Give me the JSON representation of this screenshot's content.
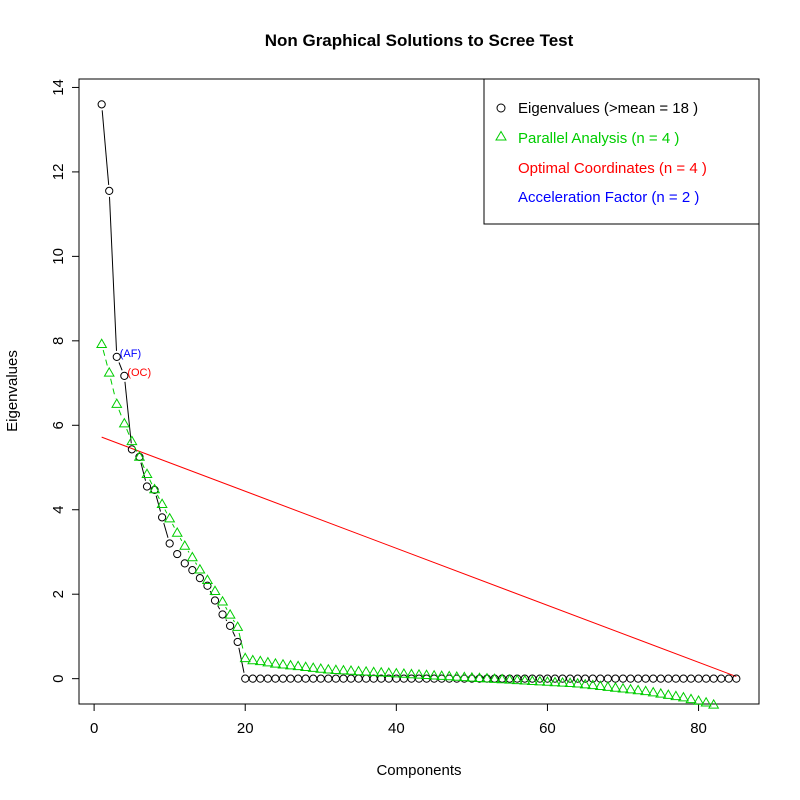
{
  "chart_data": {
    "type": "scatter",
    "title": "Non Graphical Solutions to Scree Test",
    "xlabel": "Components",
    "ylabel": "Eigenvalues",
    "xlim": [
      -2,
      88
    ],
    "ylim": [
      -0.6,
      14.2
    ],
    "x_ticks": [
      0,
      20,
      40,
      60,
      80
    ],
    "y_ticks": [
      0,
      2,
      4,
      6,
      8,
      10,
      12,
      14
    ],
    "legend_position": "top-right",
    "grid": false,
    "legend": {
      "eigen": "Eigenvalues (>mean  =  18 )",
      "parallel": "Parallel Analysis (n =  4 )",
      "oc": "Optimal Coordinates (n =  4 )",
      "af": "Acceleration Factor (n =  2 )"
    },
    "colors": {
      "eigen": "#000000",
      "parallel": "#00cd00",
      "oc": "#ff0000",
      "af": "#0000ff"
    },
    "annotations": [
      {
        "text": "(AF)",
        "x": 3,
        "y": 7.62,
        "color": "#0000ff"
      },
      {
        "text": "(OC)",
        "x": 4,
        "y": 7.17,
        "color": "#ff0000"
      }
    ],
    "series": [
      {
        "name": "Eigenvalues",
        "marker": "circle",
        "x": [
          1,
          2,
          3,
          4,
          5,
          6,
          7,
          8,
          9,
          10,
          11,
          12,
          13,
          14,
          15,
          16,
          17,
          18,
          19,
          20,
          21,
          22,
          23,
          24,
          25,
          26,
          27,
          28,
          29,
          30,
          31,
          32,
          33,
          34,
          35,
          36,
          37,
          38,
          39,
          40,
          41,
          42,
          43,
          44,
          45,
          46,
          47,
          48,
          49,
          50,
          51,
          52,
          53,
          54,
          55,
          56,
          57,
          58,
          59,
          60,
          61,
          62,
          63,
          64,
          65,
          66,
          67,
          68,
          69,
          70,
          71,
          72,
          73,
          74,
          75,
          76,
          77,
          78,
          79,
          80,
          81,
          82,
          83,
          84,
          85
        ],
        "values": [
          13.6,
          11.55,
          7.62,
          7.17,
          5.43,
          5.25,
          4.55,
          4.47,
          3.82,
          3.2,
          2.95,
          2.73,
          2.57,
          2.38,
          2.2,
          1.85,
          1.52,
          1.25,
          0.87,
          0,
          0,
          0,
          0,
          0,
          0,
          0,
          0,
          0,
          0,
          0,
          0,
          0,
          0,
          0,
          0,
          0,
          0,
          0,
          0,
          0,
          0,
          0,
          0,
          0,
          0,
          0,
          0,
          0,
          0,
          0,
          0,
          0,
          0,
          0,
          0,
          0,
          0,
          0,
          0,
          0,
          0,
          0,
          0,
          0,
          0,
          0,
          0,
          0,
          0,
          0,
          0,
          0,
          0,
          0,
          0,
          0,
          0,
          0,
          0,
          0,
          0,
          0,
          0,
          0,
          0
        ]
      },
      {
        "name": "Parallel Analysis",
        "marker": "triangle",
        "x": [
          1,
          2,
          3,
          4,
          5,
          6,
          7,
          8,
          9,
          10,
          11,
          12,
          13,
          14,
          15,
          16,
          17,
          18,
          19,
          20,
          21,
          22,
          23,
          24,
          25,
          26,
          27,
          28,
          29,
          30,
          31,
          32,
          33,
          34,
          35,
          36,
          37,
          38,
          39,
          40,
          41,
          42,
          43,
          44,
          45,
          46,
          47,
          48,
          49,
          50,
          51,
          52,
          53,
          54,
          55,
          56,
          57,
          58,
          59,
          60,
          61,
          62,
          63,
          64,
          65,
          66,
          67,
          68,
          69,
          70,
          71,
          72,
          73,
          74,
          75,
          76,
          77,
          78,
          79,
          80,
          81,
          82,
          83,
          84,
          85
        ],
        "values": [
          7.92,
          7.24,
          6.5,
          6.04,
          5.62,
          5.25,
          4.84,
          4.48,
          4.13,
          3.79,
          3.45,
          3.14,
          2.87,
          2.58,
          2.33,
          2.07,
          1.82,
          1.51,
          1.22,
          0.48,
          0.43,
          0.41,
          0.38,
          0.35,
          0.33,
          0.31,
          0.29,
          0.27,
          0.25,
          0.23,
          0.21,
          0.2,
          0.19,
          0.18,
          0.17,
          0.16,
          0.15,
          0.14,
          0.13,
          0.12,
          0.11,
          0.1,
          0.09,
          0.08,
          0.07,
          0.06,
          0.05,
          0.04,
          0.03,
          0.02,
          0.01,
          0.0,
          -0.01,
          -0.02,
          -0.03,
          -0.04,
          -0.05,
          -0.06,
          -0.07,
          -0.08,
          -0.09,
          -0.1,
          -0.11,
          -0.12,
          -0.14,
          -0.16,
          -0.18,
          -0.2,
          -0.22,
          -0.24,
          -0.26,
          -0.28,
          -0.3,
          -0.33,
          -0.36,
          -0.39,
          -0.42,
          -0.45,
          -0.49,
          -0.53,
          -0.57,
          -0.62,
          -0.67,
          -0.72,
          -0.78
        ]
      }
    ],
    "oc_line": {
      "x": [
        1,
        85
      ],
      "y": [
        5.72,
        0.05
      ]
    }
  }
}
